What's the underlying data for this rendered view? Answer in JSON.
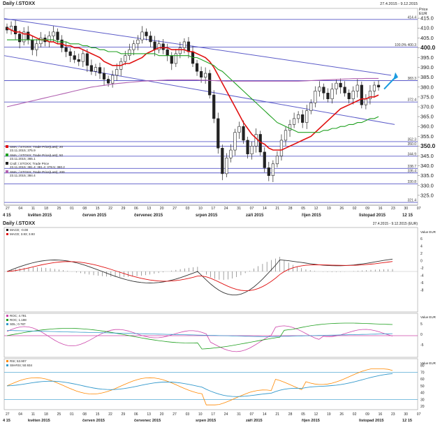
{
  "main_chart": {
    "title": "Daily /.STOXX",
    "date_range": "27.4.2015 - 9.12.2015",
    "currency": "(EUR)",
    "price_label": "Price",
    "price_unit": "EUR",
    "y_ticks": [
      325,
      330,
      335,
      340,
      345,
      350,
      355,
      360,
      365,
      370,
      375,
      380,
      385,
      390,
      395,
      400,
      405,
      410,
      415
    ],
    "bold_ticks": [
      350,
      400
    ],
    "hlines": [
      {
        "value": 414.4,
        "label": "414.4"
      },
      {
        "value": 400.3,
        "label": "100.0% 400.3"
      },
      {
        "value": 383.3,
        "label": "383.3"
      },
      {
        "value": 372.4,
        "label": "372.4"
      },
      {
        "value": 352.3,
        "label": "352.3"
      },
      {
        "value": 350.0,
        "label": "350.0"
      },
      {
        "value": 344.9,
        "label": "344.9"
      },
      {
        "value": 338.7,
        "label": "338.7"
      },
      {
        "value": 336.4,
        "label": "336.4"
      },
      {
        "value": 330.8,
        "label": "330.8"
      },
      {
        "value": 321.4,
        "label": "321.4"
      }
    ],
    "legend": [
      {
        "text": "SMA; /.STOXX; Trade Price(Last); 20",
        "sub": "23.11.2015; 375.9",
        "color": "#e01010"
      },
      {
        "text": "SMA; /.STOXX; Trade Price(Last); 50",
        "sub": "23.11.2015; 365.1",
        "color": "#20a020"
      },
      {
        "text": "Cndl; /.STOXX; Trade Price",
        "sub": "23.11.2015; 381.4; 381.4; 378.5; 380.2",
        "color": "#222222"
      },
      {
        "text": "SMA; /.STOXX; Trade Price(Last); 200",
        "sub": "23.11.2015; 384.4",
        "color": "#b060b0"
      }
    ],
    "x_day_labels": [
      "27",
      "04",
      "11",
      "18",
      "25",
      "01",
      "08",
      "15",
      "22",
      "29",
      "06",
      "13",
      "20",
      "27",
      "03",
      "10",
      "17",
      "24",
      "31",
      "07",
      "14",
      "21",
      "28",
      "05",
      "12",
      "19",
      "26",
      "02",
      "09",
      "16",
      "23",
      "30",
      "07"
    ],
    "x_month_labels": [
      "4 15",
      "květen 2015",
      "červen 2015",
      "červenec 2015",
      "srpen 2015",
      "září 2015",
      "říjen 2015",
      "listopad 2015",
      "12 15"
    ]
  },
  "chart_data": {
    "type": "candlestick",
    "title": "Daily /.STOXX",
    "x_range": [
      "2015-04-27",
      "2015-12-09"
    ],
    "ylim": [
      320,
      420
    ],
    "ylabel": "Price EUR",
    "grid": false,
    "close": [
      409,
      411,
      407,
      403,
      408,
      404,
      399,
      402,
      405,
      403,
      406,
      408,
      404,
      400,
      398,
      396,
      394,
      393,
      397,
      391,
      388,
      390,
      387,
      384,
      382,
      386,
      389,
      393,
      396,
      399,
      402,
      404,
      408,
      406,
      403,
      399,
      402,
      399,
      396,
      392,
      397,
      400,
      403,
      398,
      392,
      388,
      385,
      387,
      376,
      364,
      349,
      336,
      344,
      348,
      357,
      360,
      353,
      346,
      350,
      356,
      347,
      339,
      335,
      341,
      345,
      353,
      358,
      361,
      364,
      366,
      362,
      368,
      372,
      378,
      380,
      377,
      374,
      379,
      382,
      380,
      377,
      374,
      378,
      381,
      371,
      374,
      378,
      381,
      380
    ],
    "series": [
      {
        "name": "SMA 20",
        "color": "#e01010",
        "values": [
          410,
          409,
          408,
          408,
          407,
          407,
          406,
          405,
          404,
          404,
          403,
          403,
          402,
          402,
          401,
          401,
          400,
          400,
          399,
          398,
          397,
          396,
          395,
          393,
          392,
          391,
          391,
          391,
          392,
          392,
          393,
          394,
          395,
          397,
          398,
          399,
          400,
          400,
          400,
          399,
          399,
          399,
          399,
          398,
          398,
          397,
          396,
          395,
          393,
          390,
          386,
          382,
          378,
          374,
          370,
          366,
          362,
          359,
          356,
          354,
          352,
          351,
          349,
          348,
          348,
          348,
          349,
          350,
          351,
          352,
          353,
          354,
          355,
          357,
          359,
          361,
          363,
          365,
          367,
          369,
          370,
          371,
          372,
          373,
          374,
          374,
          375,
          375,
          376
        ]
      },
      {
        "name": "SMA 50",
        "color": "#20a020",
        "values": [
          404,
          404,
          404,
          404,
          404,
          404,
          404,
          404,
          404,
          404,
          404,
          404,
          403,
          403,
          403,
          402,
          402,
          402,
          401,
          401,
          400,
          400,
          399,
          399,
          398,
          398,
          398,
          397,
          397,
          397,
          397,
          397,
          397,
          397,
          397,
          397,
          396,
          396,
          396,
          396,
          396,
          396,
          396,
          396,
          395,
          395,
          394,
          393,
          392,
          391,
          389,
          388,
          386,
          384,
          382,
          380,
          378,
          376,
          374,
          372,
          370,
          368,
          366,
          364,
          362,
          361,
          360,
          359,
          358,
          357,
          357,
          357,
          357,
          357,
          357,
          358,
          358,
          359,
          359,
          360,
          360,
          361,
          361,
          362,
          362,
          363,
          364,
          364,
          365
        ]
      },
      {
        "name": "SMA 200",
        "color": "#b060b0",
        "values": [
          370,
          370.5,
          371,
          371.5,
          372,
          372.5,
          373,
          373.5,
          374,
          374.5,
          375,
          375.5,
          376,
          376.5,
          377,
          377.5,
          378,
          378.5,
          379,
          379.5,
          380,
          380.3,
          380.6,
          380.9,
          381.2,
          381.5,
          381.8,
          382,
          382.2,
          382.4,
          382.6,
          382.8,
          383,
          383.1,
          383.2,
          383.3,
          383.4,
          383.5,
          383.6,
          383.6,
          383.6,
          383.6,
          383.6,
          383.6,
          383.6,
          383.6,
          383.5,
          383.5,
          383.4,
          383.3,
          383.2,
          383.1,
          383,
          383,
          383,
          383,
          383,
          383,
          383,
          383,
          383,
          383,
          383,
          383,
          383,
          383,
          383,
          383,
          383,
          383,
          383.1,
          383.2,
          383.3,
          383.4,
          383.5,
          383.6,
          383.7,
          383.8,
          383.9,
          384,
          384.1,
          384.2,
          384.3,
          384.3,
          384.3,
          384.4,
          384.4,
          384.4,
          384.4
        ]
      }
    ]
  },
  "sub1": {
    "title": "Daily /.STOXX",
    "date_range": "27.4.2015 - 9.12.2015 (EUR)",
    "legend": [
      {
        "text": "MACD; -0.08",
        "color": "#222222"
      },
      {
        "text": "MACD; 3.83; 3.93",
        "color": "#e01010"
      }
    ],
    "unit": "Value EUR",
    "ticks": [
      "6",
      "4",
      "2",
      "0",
      "-2",
      "-4",
      "-6",
      "-8"
    ]
  },
  "sub2": {
    "legend": [
      {
        "text": "ROC; 4.791",
        "color": "#cc44aa"
      },
      {
        "text": "ROC; 1.198",
        "color": "#20a020"
      },
      {
        "text": "SDL; 0.787",
        "color": "#3399cc"
      }
    ],
    "unit": "Value EUR",
    "ticks": [
      "5",
      "0",
      "-5"
    ]
  },
  "sub3": {
    "legend": [
      {
        "text": "RSI; 53.907",
        "color": "#ff8800"
      },
      {
        "text": "SM-RSI; 50.934",
        "color": "#3399cc"
      }
    ],
    "unit": "Value EUR",
    "ticks": [
      "80",
      "70",
      "60",
      "50",
      "40",
      "30",
      "20"
    ]
  }
}
